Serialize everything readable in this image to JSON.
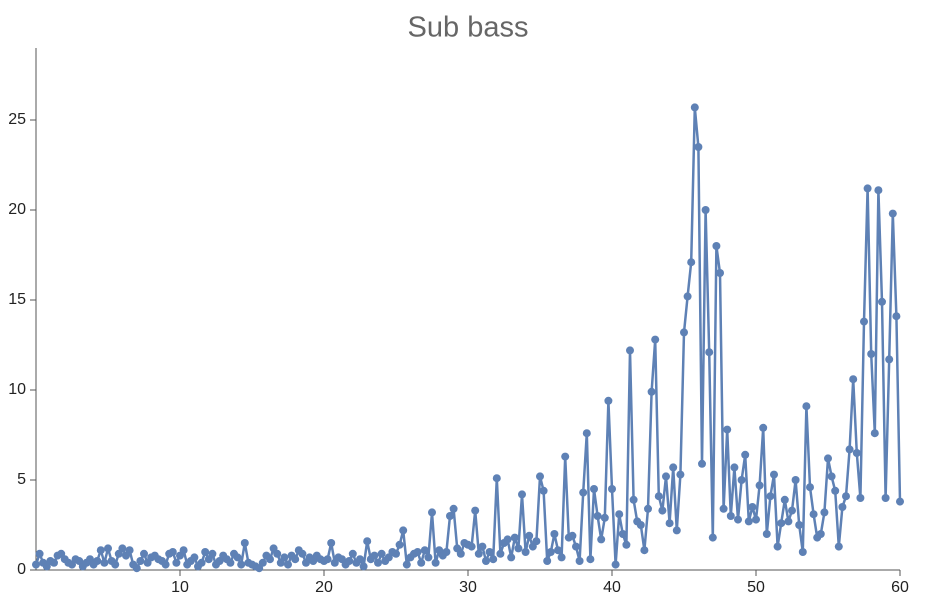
{
  "chart_data": {
    "type": "line",
    "title": "Sub bass",
    "x": [
      0,
      0.25,
      0.5,
      0.75,
      1,
      1.25,
      1.5,
      1.75,
      2,
      2.25,
      2.5,
      2.75,
      3,
      3.25,
      3.5,
      3.75,
      4,
      4.25,
      4.5,
      4.75,
      5,
      5.25,
      5.5,
      5.75,
      6,
      6.25,
      6.5,
      6.75,
      7,
      7.25,
      7.5,
      7.75,
      8,
      8.25,
      8.5,
      8.75,
      9,
      9.25,
      9.5,
      9.75,
      10,
      10.25,
      10.5,
      10.75,
      11,
      11.25,
      11.5,
      11.75,
      12,
      12.25,
      12.5,
      12.75,
      13,
      13.25,
      13.5,
      13.75,
      14,
      14.25,
      14.5,
      14.75,
      15,
      15.25,
      15.5,
      15.75,
      16,
      16.25,
      16.5,
      16.75,
      17,
      17.25,
      17.5,
      17.75,
      18,
      18.25,
      18.5,
      18.75,
      19,
      19.25,
      19.5,
      19.75,
      20,
      20.25,
      20.5,
      20.75,
      21,
      21.25,
      21.5,
      21.75,
      22,
      22.25,
      22.5,
      22.75,
      23,
      23.25,
      23.5,
      23.75,
      24,
      24.25,
      24.5,
      24.75,
      25,
      25.25,
      25.5,
      25.75,
      26,
      26.25,
      26.5,
      26.75,
      27,
      27.25,
      27.5,
      27.75,
      28,
      28.25,
      28.5,
      28.75,
      29,
      29.25,
      29.5,
      29.75,
      30,
      30.25,
      30.5,
      30.75,
      31,
      31.25,
      31.5,
      31.75,
      32,
      32.25,
      32.5,
      32.75,
      33,
      33.25,
      33.5,
      33.75,
      34,
      34.25,
      34.5,
      34.75,
      35,
      35.25,
      35.5,
      35.75,
      36,
      36.25,
      36.5,
      36.75,
      37,
      37.25,
      37.5,
      37.75,
      38,
      38.25,
      38.5,
      38.75,
      39,
      39.25,
      39.5,
      39.75,
      40,
      40.25,
      40.5,
      40.75,
      41,
      41.25,
      41.5,
      41.75,
      42,
      42.25,
      42.5,
      42.75,
      43,
      43.25,
      43.5,
      43.75,
      44,
      44.25,
      44.5,
      44.75,
      45,
      45.25,
      45.5,
      45.75,
      46,
      46.25,
      46.5,
      46.75,
      47,
      47.25,
      47.5,
      47.75,
      48,
      48.25,
      48.5,
      48.75,
      49,
      49.25,
      49.5,
      49.75,
      50,
      50.25,
      50.5,
      50.75,
      51,
      51.25,
      51.5,
      51.75,
      52,
      52.25,
      52.5,
      52.75,
      53,
      53.25,
      53.5,
      53.75,
      54,
      54.25,
      54.5,
      54.75,
      55,
      55.25,
      55.5,
      55.75,
      56,
      56.25,
      56.5,
      56.75,
      57,
      57.25,
      57.5,
      57.75,
      58,
      58.25,
      58.5,
      58.75,
      59,
      59.25,
      59.5,
      59.75,
      60
    ],
    "series": [
      {
        "color": "#5e81b5",
        "values": [
          0.3,
          0.9,
          0.4,
          0.2,
          0.5,
          0.4,
          0.8,
          0.9,
          0.6,
          0.4,
          0.3,
          0.6,
          0.5,
          0.2,
          0.4,
          0.6,
          0.3,
          0.5,
          1.1,
          0.4,
          1.2,
          0.5,
          0.3,
          0.9,
          1.2,
          0.8,
          1.1,
          0.3,
          0.1,
          0.5,
          0.9,
          0.4,
          0.7,
          0.8,
          0.6,
          0.5,
          0.3,
          0.9,
          1.0,
          0.4,
          0.8,
          1.1,
          0.3,
          0.5,
          0.7,
          0.2,
          0.4,
          1.0,
          0.6,
          0.9,
          0.3,
          0.5,
          0.8,
          0.6,
          0.4,
          0.9,
          0.7,
          0.3,
          1.5,
          0.4,
          0.3,
          0.2,
          0.1,
          0.4,
          0.8,
          0.6,
          1.2,
          0.9,
          0.4,
          0.7,
          0.3,
          0.8,
          0.6,
          1.1,
          0.9,
          0.4,
          0.7,
          0.5,
          0.8,
          0.6,
          0.5,
          0.6,
          1.5,
          0.4,
          0.7,
          0.6,
          0.3,
          0.5,
          0.9,
          0.4,
          0.6,
          0.2,
          1.6,
          0.6,
          0.8,
          0.4,
          0.9,
          0.5,
          0.7,
          1.0,
          0.9,
          1.4,
          2.2,
          0.3,
          0.7,
          0.9,
          1.0,
          0.4,
          1.1,
          0.7,
          3.2,
          0.4,
          1.1,
          0.8,
          1.0,
          3.0,
          3.4,
          1.2,
          0.9,
          1.5,
          1.4,
          1.3,
          3.3,
          0.9,
          1.3,
          0.5,
          1.0,
          0.6,
          5.1,
          0.9,
          1.5,
          1.7,
          0.7,
          1.8,
          1.2,
          4.2,
          1.0,
          1.9,
          1.3,
          1.6,
          5.2,
          4.4,
          0.5,
          1.0,
          2.0,
          1.1,
          0.7,
          6.3,
          1.8,
          1.9,
          1.3,
          0.5,
          4.3,
          7.6,
          0.6,
          4.5,
          3.0,
          1.7,
          2.9,
          9.4,
          4.5,
          0.3,
          3.1,
          2.0,
          1.4,
          12.2,
          3.9,
          2.7,
          2.5,
          1.1,
          3.4,
          9.9,
          12.8,
          4.1,
          3.3,
          5.2,
          2.6,
          5.7,
          2.2,
          5.3,
          13.2,
          15.2,
          17.1,
          25.7,
          23.5,
          5.9,
          20.0,
          12.1,
          1.8,
          18.0,
          16.5,
          3.4,
          7.8,
          3.0,
          5.7,
          2.8,
          5.0,
          6.4,
          2.7,
          3.5,
          2.8,
          4.7,
          7.9,
          2.0,
          4.1,
          5.3,
          1.3,
          2.6,
          3.9,
          2.7,
          3.3,
          5.0,
          2.5,
          1.0,
          9.1,
          4.6,
          3.1,
          1.8,
          2.0,
          3.2,
          6.2,
          5.2,
          4.4,
          1.3,
          3.5,
          4.1,
          6.7,
          10.6,
          6.5,
          4.0,
          13.8,
          21.2,
          12.0,
          7.6,
          21.1,
          14.9,
          4.0,
          11.7,
          19.8,
          14.1,
          3.8
        ]
      }
    ],
    "xlim": [
      0,
      60
    ],
    "xticks": [
      10,
      20,
      30,
      40,
      50,
      60
    ],
    "ylim": [
      0,
      29
    ],
    "yticks": [
      0,
      5,
      10,
      15,
      20,
      25
    ]
  }
}
